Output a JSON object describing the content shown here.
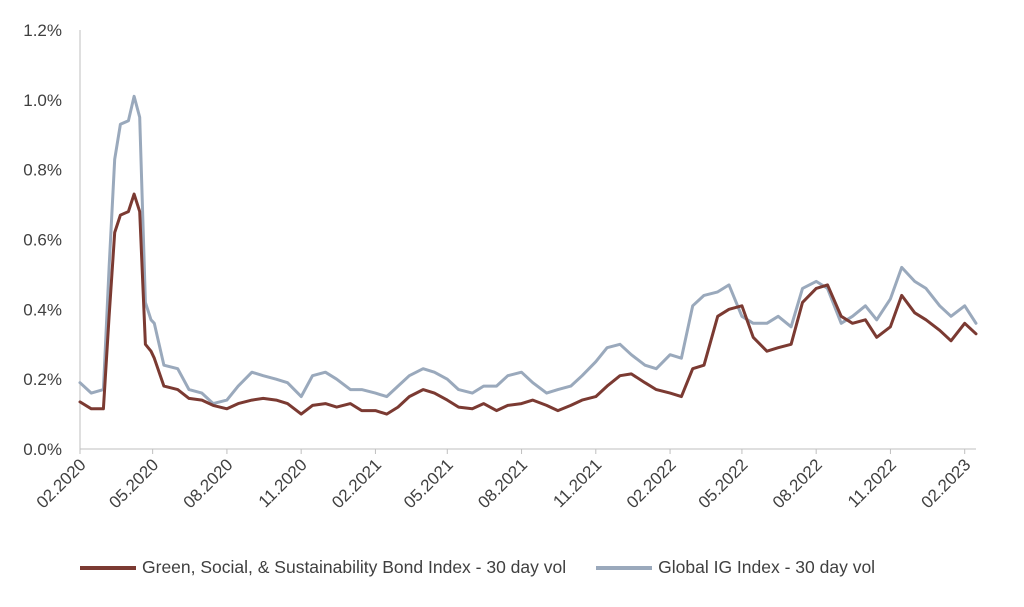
{
  "chart_data": {
    "type": "line",
    "title": "",
    "xlabel": "",
    "ylabel": "",
    "ylim": [
      0,
      0.012
    ],
    "y_tick_values": [
      0,
      0.002,
      0.004,
      0.006,
      0.008,
      0.01,
      0.012
    ],
    "y_tick_labels": [
      "0.0%",
      "0.2%",
      "0.4%",
      "0.6%",
      "0.8%",
      "1.0%",
      "1.2%"
    ],
    "x_tick_labels": [
      "02.2020",
      "05.2020",
      "08.2020",
      "11.2020",
      "02.2021",
      "05.2021",
      "08.2021",
      "11.2021",
      "02.2022",
      "05.2022",
      "08.2022",
      "11.2022",
      "02.2023"
    ],
    "x_tick_dates": [
      "2020-02",
      "2020-05",
      "2020-08",
      "2020-11",
      "2021-02",
      "2021-05",
      "2021-08",
      "2021-11",
      "2022-02",
      "2022-05",
      "2022-08",
      "2022-11",
      "2023-02"
    ],
    "grid": false,
    "legend_position": "bottom",
    "series": [
      {
        "name": "Green, Social, & Sustainability Bond Index - 30 day vol",
        "color": "#7b3a32",
        "x": [
          "2020-02-01",
          "2020-02-15",
          "2020-03-01",
          "2020-03-08",
          "2020-03-15",
          "2020-03-22",
          "2020-04-01",
          "2020-04-08",
          "2020-04-15",
          "2020-04-22",
          "2020-04-29",
          "2020-05-03",
          "2020-05-15",
          "2020-06-01",
          "2020-06-15",
          "2020-07-01",
          "2020-07-15",
          "2020-08-01",
          "2020-08-15",
          "2020-09-01",
          "2020-09-15",
          "2020-10-01",
          "2020-10-15",
          "2020-11-01",
          "2020-11-15",
          "2020-12-01",
          "2020-12-15",
          "2021-01-01",
          "2021-01-15",
          "2021-02-01",
          "2021-02-15",
          "2021-03-01",
          "2021-03-15",
          "2021-04-01",
          "2021-04-15",
          "2021-05-01",
          "2021-05-15",
          "2021-06-01",
          "2021-06-15",
          "2021-07-01",
          "2021-07-15",
          "2021-08-01",
          "2021-08-15",
          "2021-09-01",
          "2021-09-15",
          "2021-10-01",
          "2021-10-15",
          "2021-11-01",
          "2021-11-15",
          "2021-12-01",
          "2021-12-15",
          "2022-01-01",
          "2022-01-15",
          "2022-02-01",
          "2022-02-15",
          "2022-03-01",
          "2022-03-15",
          "2022-04-01",
          "2022-04-15",
          "2022-05-01",
          "2022-05-15",
          "2022-06-01",
          "2022-06-15",
          "2022-07-01",
          "2022-07-15",
          "2022-08-01",
          "2022-08-15",
          "2022-09-01",
          "2022-09-15",
          "2022-10-01",
          "2022-10-15",
          "2022-11-01",
          "2022-11-15",
          "2022-12-01",
          "2022-12-15",
          "2023-01-01",
          "2023-01-15",
          "2023-02-01",
          "2023-02-15"
        ],
        "y": [
          0.00135,
          0.00115,
          0.00115,
          0.0038,
          0.0062,
          0.0067,
          0.0068,
          0.0073,
          0.0068,
          0.003,
          0.0028,
          0.0026,
          0.0018,
          0.0017,
          0.00145,
          0.0014,
          0.00125,
          0.00115,
          0.0013,
          0.0014,
          0.00145,
          0.0014,
          0.0013,
          0.001,
          0.00125,
          0.0013,
          0.0012,
          0.0013,
          0.0011,
          0.0011,
          0.001,
          0.0012,
          0.0015,
          0.0017,
          0.0016,
          0.0014,
          0.0012,
          0.00115,
          0.0013,
          0.0011,
          0.00125,
          0.0013,
          0.0014,
          0.00125,
          0.0011,
          0.00125,
          0.0014,
          0.0015,
          0.0018,
          0.0021,
          0.00215,
          0.0019,
          0.0017,
          0.0016,
          0.0015,
          0.0023,
          0.0024,
          0.0038,
          0.004,
          0.0041,
          0.0032,
          0.0028,
          0.0029,
          0.003,
          0.0042,
          0.0046,
          0.0047,
          0.0038,
          0.0036,
          0.0037,
          0.0032,
          0.0035,
          0.0044,
          0.0039,
          0.0037,
          0.0034,
          0.0031,
          0.0036,
          0.0033
        ]
      },
      {
        "name": "Global IG Index - 30 day vol",
        "color": "#9aa9bc",
        "x": [
          "2020-02-01",
          "2020-02-15",
          "2020-03-01",
          "2020-03-08",
          "2020-03-15",
          "2020-03-22",
          "2020-04-01",
          "2020-04-08",
          "2020-04-15",
          "2020-04-22",
          "2020-04-29",
          "2020-05-03",
          "2020-05-15",
          "2020-06-01",
          "2020-06-15",
          "2020-07-01",
          "2020-07-15",
          "2020-08-01",
          "2020-08-15",
          "2020-09-01",
          "2020-09-15",
          "2020-10-01",
          "2020-10-15",
          "2020-11-01",
          "2020-11-15",
          "2020-12-01",
          "2020-12-15",
          "2021-01-01",
          "2021-01-15",
          "2021-02-01",
          "2021-02-15",
          "2021-03-01",
          "2021-03-15",
          "2021-04-01",
          "2021-04-15",
          "2021-05-01",
          "2021-05-15",
          "2021-06-01",
          "2021-06-15",
          "2021-07-01",
          "2021-07-15",
          "2021-08-01",
          "2021-08-15",
          "2021-09-01",
          "2021-09-15",
          "2021-10-01",
          "2021-10-15",
          "2021-11-01",
          "2021-11-15",
          "2021-12-01",
          "2021-12-15",
          "2022-01-01",
          "2022-01-15",
          "2022-02-01",
          "2022-02-15",
          "2022-03-01",
          "2022-03-15",
          "2022-04-01",
          "2022-04-15",
          "2022-05-01",
          "2022-05-15",
          "2022-06-01",
          "2022-06-15",
          "2022-07-01",
          "2022-07-15",
          "2022-08-01",
          "2022-08-15",
          "2022-09-01",
          "2022-09-15",
          "2022-10-01",
          "2022-10-15",
          "2022-11-01",
          "2022-11-15",
          "2022-12-01",
          "2022-12-15",
          "2023-01-01",
          "2023-01-15",
          "2023-02-01",
          "2023-02-15"
        ],
        "y": [
          0.0019,
          0.0016,
          0.0017,
          0.0052,
          0.0083,
          0.0093,
          0.0094,
          0.0101,
          0.0095,
          0.0042,
          0.0037,
          0.0036,
          0.0024,
          0.0023,
          0.0017,
          0.0016,
          0.0013,
          0.0014,
          0.0018,
          0.0022,
          0.0021,
          0.002,
          0.0019,
          0.0015,
          0.0021,
          0.0022,
          0.002,
          0.0017,
          0.0017,
          0.0016,
          0.0015,
          0.0018,
          0.0021,
          0.0023,
          0.0022,
          0.002,
          0.0017,
          0.0016,
          0.0018,
          0.0018,
          0.0021,
          0.0022,
          0.0019,
          0.0016,
          0.0017,
          0.0018,
          0.0021,
          0.0025,
          0.0029,
          0.003,
          0.0027,
          0.0024,
          0.0023,
          0.0027,
          0.0026,
          0.0041,
          0.0044,
          0.0045,
          0.0047,
          0.0038,
          0.0036,
          0.0036,
          0.0038,
          0.0035,
          0.0046,
          0.0048,
          0.0046,
          0.0036,
          0.0038,
          0.0041,
          0.0037,
          0.0043,
          0.0052,
          0.0048,
          0.0046,
          0.0041,
          0.0038,
          0.0041,
          0.0036
        ]
      }
    ]
  }
}
